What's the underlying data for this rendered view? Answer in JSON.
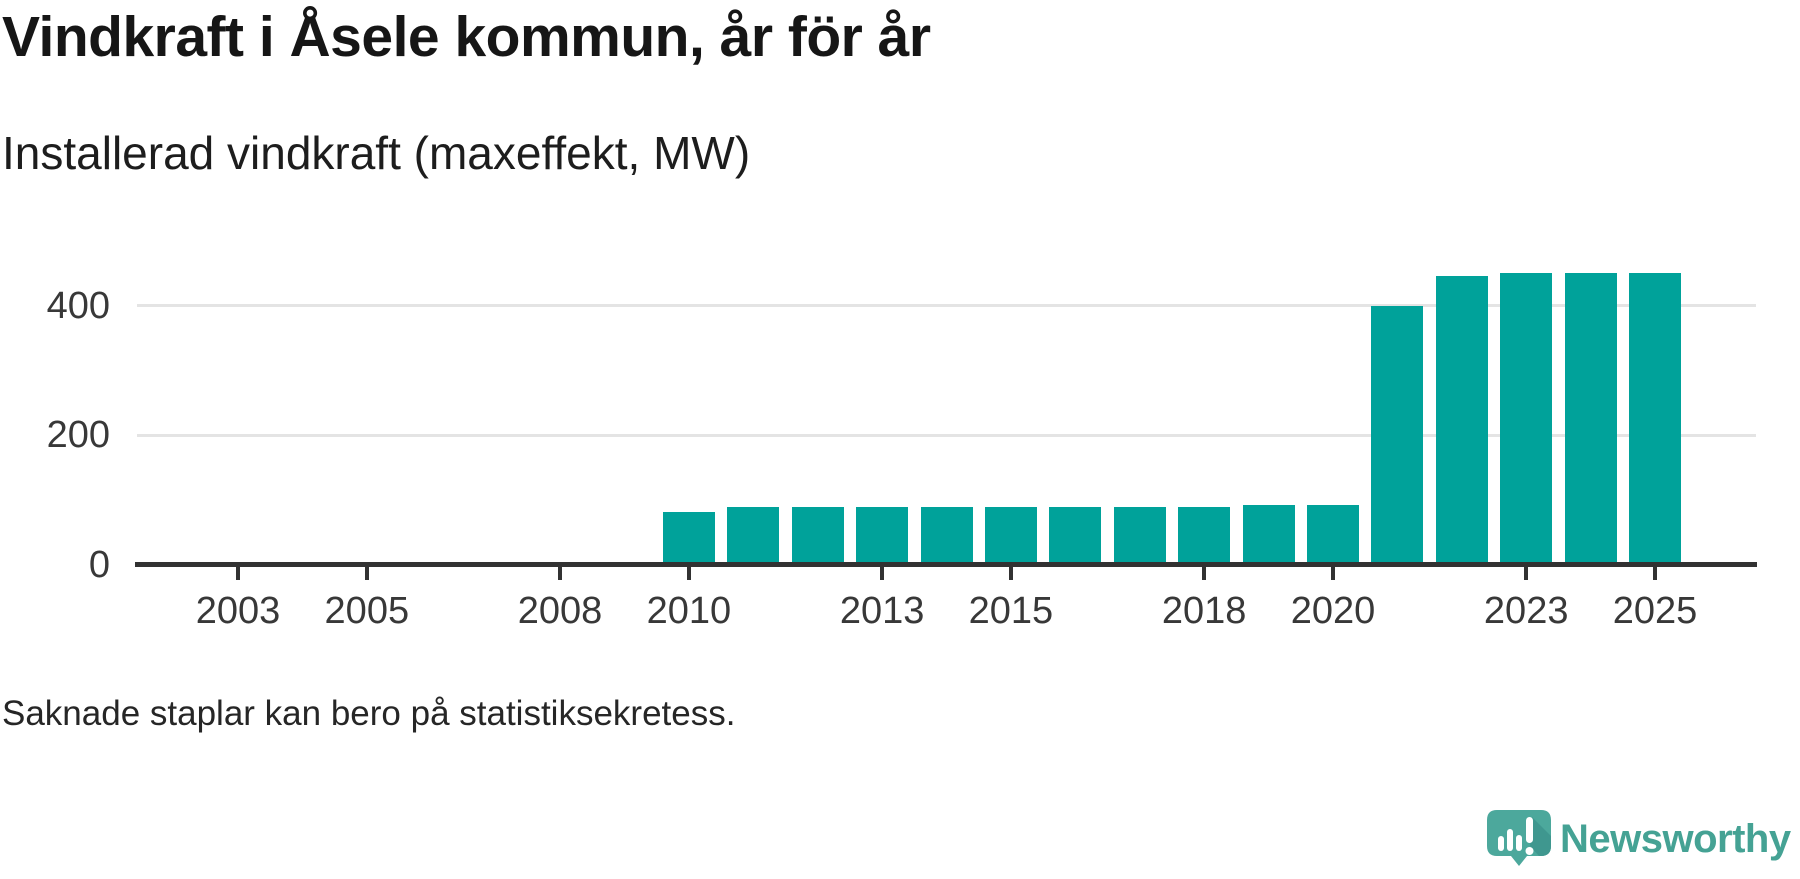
{
  "page": {
    "background": "#ffffff"
  },
  "header": {
    "title": "Vindkraft i Åsele kommun, år för år",
    "subtitle": "Installerad vindkraft (maxeffekt, MW)"
  },
  "footer": {
    "note": "Saknade staplar kan bero på statistiksekretess.",
    "brand": {
      "name": "Newsworthy",
      "icon": "newsworthy-speech-bubble-chart-icon",
      "wordmark_color": "#45a294",
      "icon_color": "#4ca89c"
    }
  },
  "chart_data": {
    "type": "bar",
    "title": "Vindkraft i Åsele kommun, år för år",
    "subtitle": "Installerad vindkraft (maxeffekt, MW)",
    "unit": "MW",
    "categories": [
      2002,
      2003,
      2004,
      2005,
      2006,
      2007,
      2008,
      2009,
      2010,
      2011,
      2012,
      2013,
      2014,
      2015,
      2016,
      2017,
      2018,
      2019,
      2020,
      2021,
      2022,
      2023,
      2024,
      2025
    ],
    "values": [
      null,
      null,
      null,
      null,
      null,
      null,
      null,
      null,
      78,
      86,
      86,
      86,
      86,
      86,
      86,
      87,
      87,
      89,
      89,
      397,
      443,
      448,
      448,
      448
    ],
    "missing_values_note": "Saknade staplar kan bero på statistiksekretess.",
    "x_ticks": [
      2003,
      2005,
      2008,
      2010,
      2013,
      2015,
      2018,
      2020,
      2023,
      2025
    ],
    "y_ticks": [
      0,
      200,
      400
    ],
    "xlim": [
      2002,
      2026
    ],
    "ylim": [
      0,
      460
    ],
    "grid": "horizontal",
    "legend": "none",
    "bar_color": "#00a29a",
    "axis_color": "#323232",
    "grid_color": "#e4e4e4",
    "tick_label_color": "#383838"
  }
}
